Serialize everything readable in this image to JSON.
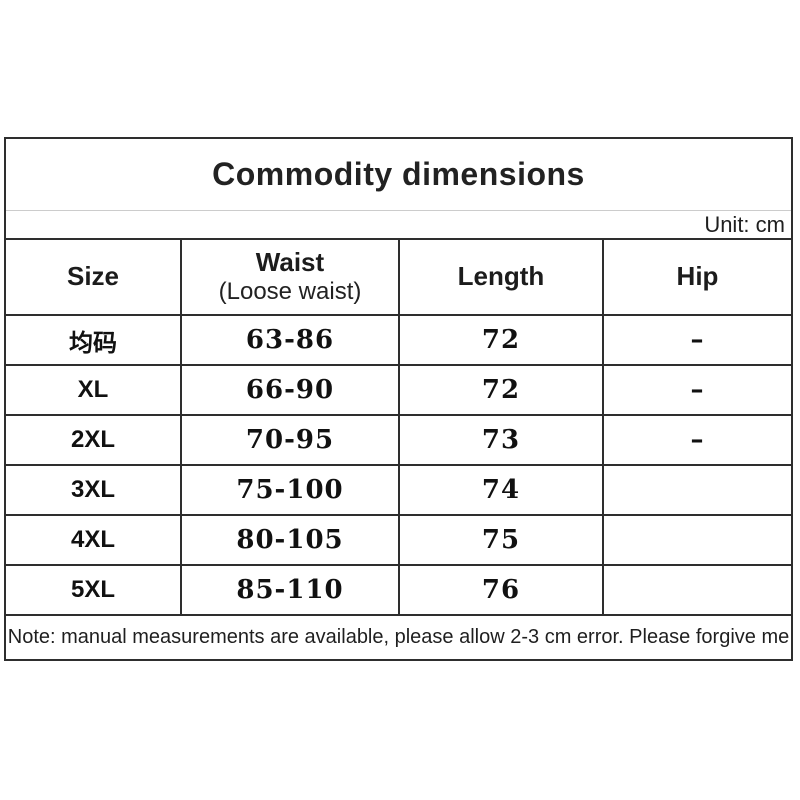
{
  "colors": {
    "background": "#ffffff",
    "border_dark": "#2e2e2e",
    "border_light": "#cccccc",
    "text": "#1a1a1a"
  },
  "table": {
    "title": "Commodity dimensions",
    "unit_label": "Unit: cm",
    "columns": {
      "size": "Size",
      "waist_line1": "Waist",
      "waist_line2": "(Loose waist)",
      "length": "Length",
      "hip": "Hip"
    },
    "rows": [
      {
        "size": "均码",
        "waist": "63-86",
        "length": "72",
        "hip": "–"
      },
      {
        "size": "XL",
        "waist": "66-90",
        "length": "72",
        "hip": "–"
      },
      {
        "size": "2XL",
        "waist": "70-95",
        "length": "73",
        "hip": "–"
      },
      {
        "size": "3XL",
        "waist": "75-100",
        "length": "74",
        "hip": ""
      },
      {
        "size": "4XL",
        "waist": "80-105",
        "length": "75",
        "hip": ""
      },
      {
        "size": "5XL",
        "waist": "85-110",
        "length": "76",
        "hip": ""
      }
    ],
    "note": "Note: manual measurements are available, please allow 2-3 cm error. Please forgive me"
  },
  "chart_data": {
    "type": "table",
    "title": "Commodity dimensions",
    "unit": "cm",
    "columns": [
      "Size",
      "Waist (Loose waist)",
      "Length",
      "Hip"
    ],
    "rows": [
      [
        "均码",
        "63-86",
        "72",
        "–"
      ],
      [
        "XL",
        "66-90",
        "72",
        "–"
      ],
      [
        "2XL",
        "70-95",
        "73",
        "–"
      ],
      [
        "3XL",
        "75-100",
        "74",
        ""
      ],
      [
        "4XL",
        "80-105",
        "75",
        ""
      ],
      [
        "5XL",
        "85-110",
        "76",
        ""
      ]
    ],
    "note": "Note: manual measurements are available, please allow 2-3 cm error. Please forgive me"
  }
}
